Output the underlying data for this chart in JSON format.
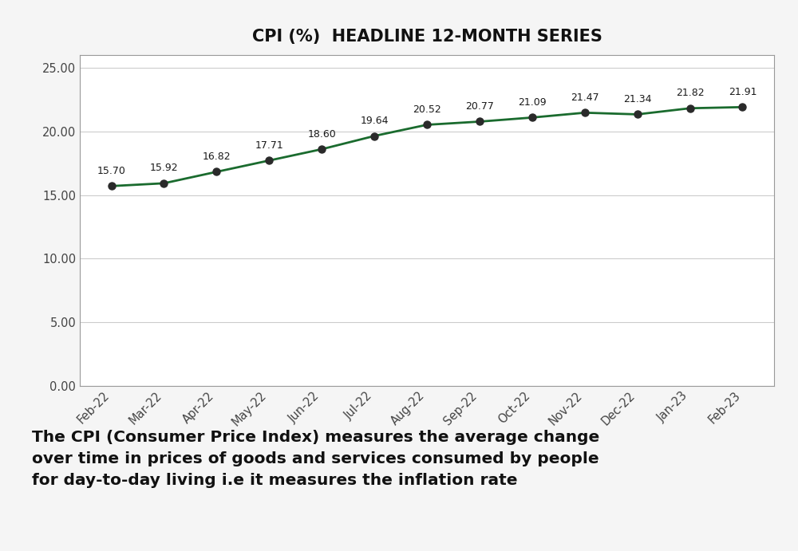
{
  "title": "CPI (%)  HEADLINE 12-MONTH SERIES",
  "categories": [
    "Feb-22",
    "Mar-22",
    "Apr-22",
    "May-22",
    "Jun-22",
    "Jul-22",
    "Aug-22",
    "Sep-22",
    "Oct-22",
    "Nov-22",
    "Dec-22",
    "Jan-23",
    "Feb-23"
  ],
  "values": [
    15.7,
    15.92,
    16.82,
    17.71,
    18.6,
    19.64,
    20.52,
    20.77,
    21.09,
    21.47,
    21.34,
    21.82,
    21.91
  ],
  "line_color": "#1a6b2e",
  "marker_color": "#2a2a2a",
  "background_color": "#f5f5f5",
  "plot_bg_color": "#ffffff",
  "ylim": [
    0,
    26
  ],
  "yticks": [
    0.0,
    5.0,
    10.0,
    15.0,
    20.0,
    25.0
  ],
  "title_fontsize": 15,
  "title_fontweight": "bold",
  "tick_fontsize": 10.5,
  "annotation_fontsize": 9.0,
  "caption": "The CPI (Consumer Price Index) measures the average change\nover time in prices of goods and services consumed by people\nfor day-to-day living i.e it measures the inflation rate",
  "caption_fontsize": 14.5,
  "caption_color": "#111111",
  "grid_color": "#cccccc",
  "spine_color": "#999999"
}
